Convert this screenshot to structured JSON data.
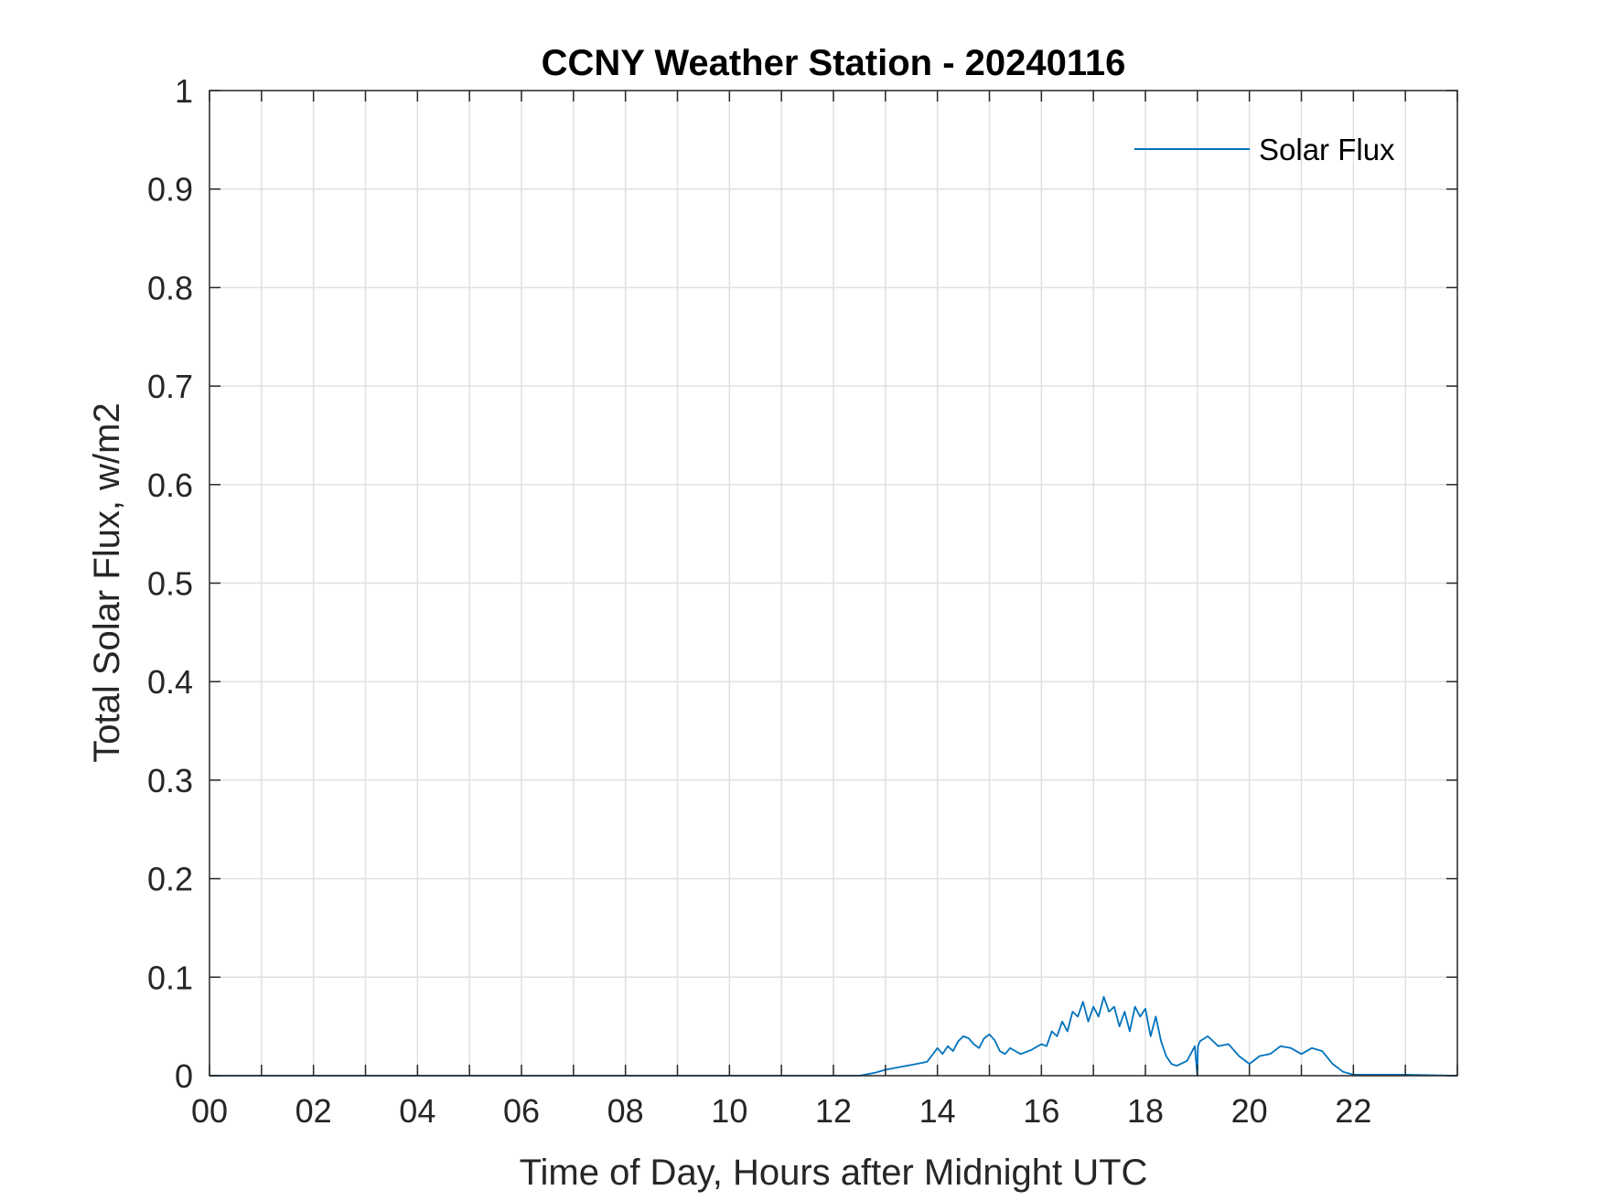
{
  "chart_data": {
    "type": "line",
    "title": "CCNY Weather Station - 20240116",
    "xlabel": "Time of Day, Hours after Midnight UTC",
    "ylabel": "Total Solar Flux, w/m2",
    "xlim": [
      0,
      24
    ],
    "ylim": [
      0,
      1
    ],
    "xticks": [
      0,
      2,
      4,
      6,
      8,
      10,
      12,
      14,
      16,
      18,
      20,
      22
    ],
    "xtick_labels": [
      "00",
      "02",
      "04",
      "06",
      "08",
      "10",
      "12",
      "14",
      "16",
      "18",
      "20",
      "22"
    ],
    "yticks": [
      0,
      0.1,
      0.2,
      0.3,
      0.4,
      0.5,
      0.6,
      0.7,
      0.8,
      0.9,
      1
    ],
    "ytick_labels": [
      "0",
      "0.1",
      "0.2",
      "0.3",
      "0.4",
      "0.5",
      "0.6",
      "0.7",
      "0.8",
      "0.9",
      "1"
    ],
    "grid": true,
    "minor_xgrid_hours": 1,
    "legend_position": "top-right",
    "colors": {
      "series": "#0072BD",
      "axes": "#262626",
      "grid": "#e0e0e0"
    },
    "series": [
      {
        "name": "Solar Flux",
        "x": [
          0,
          12.5,
          12.8,
          13.0,
          13.2,
          13.4,
          13.6,
          13.8,
          14.0,
          14.1,
          14.2,
          14.3,
          14.4,
          14.5,
          14.6,
          14.7,
          14.8,
          14.9,
          15.0,
          15.1,
          15.2,
          15.3,
          15.4,
          15.5,
          15.6,
          15.8,
          16.0,
          16.1,
          16.2,
          16.3,
          16.4,
          16.5,
          16.6,
          16.7,
          16.8,
          16.9,
          17.0,
          17.1,
          17.2,
          17.3,
          17.4,
          17.5,
          17.6,
          17.7,
          17.8,
          17.9,
          18.0,
          18.1,
          18.2,
          18.3,
          18.4,
          18.5,
          18.6,
          18.8,
          18.95,
          19.0,
          19.01,
          19.05,
          19.2,
          19.4,
          19.6,
          19.8,
          20.0,
          20.2,
          20.4,
          20.6,
          20.8,
          21.0,
          21.2,
          21.4,
          21.6,
          21.8,
          22.0,
          23.0,
          24.0
        ],
        "y": [
          0,
          0,
          0.003,
          0.006,
          0.008,
          0.01,
          0.012,
          0.014,
          0.028,
          0.022,
          0.03,
          0.025,
          0.035,
          0.04,
          0.038,
          0.032,
          0.028,
          0.038,
          0.042,
          0.036,
          0.025,
          0.022,
          0.028,
          0.025,
          0.022,
          0.026,
          0.032,
          0.03,
          0.045,
          0.04,
          0.055,
          0.045,
          0.065,
          0.06,
          0.075,
          0.055,
          0.07,
          0.06,
          0.08,
          0.065,
          0.07,
          0.05,
          0.065,
          0.045,
          0.07,
          0.06,
          0.068,
          0.04,
          0.06,
          0.035,
          0.02,
          0.012,
          0.01,
          0.015,
          0.03,
          0.0,
          0.03,
          0.035,
          0.04,
          0.03,
          0.032,
          0.02,
          0.012,
          0.02,
          0.022,
          0.03,
          0.028,
          0.022,
          0.028,
          0.025,
          0.012,
          0.004,
          0.001,
          0.001,
          0
        ]
      }
    ]
  }
}
